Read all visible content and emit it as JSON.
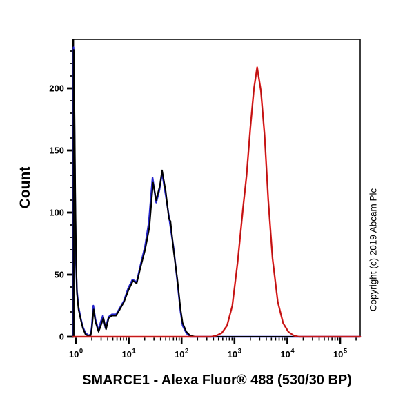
{
  "copyright": "Copyright (c) 2019 Abcam Plc",
  "chart_data": {
    "type": "line",
    "subtype": "flow-cytometry-histogram",
    "title": "",
    "xlabel": "SMARCE1 - Alexa Fluor® 488 (530/30 BP)",
    "ylabel": "Count",
    "x_scale": "log10",
    "x_tick_base": "10",
    "x_major_tick_exponents": [
      0,
      1,
      2,
      3,
      4,
      5
    ],
    "x_range_decades": [
      -0.05,
      5.38
    ],
    "y_major_ticks": [
      0,
      50,
      100,
      150,
      200
    ],
    "y_minor_step": 10,
    "ylim": [
      0,
      239
    ],
    "grid": false,
    "legend": null,
    "colors": {
      "frame": "#1a1a1a",
      "axis": "#000000",
      "blue": "#2626cc",
      "black": "#000000",
      "red": "#e81c1c",
      "red_core": "#8f1515"
    },
    "series": [
      {
        "name": "blue-curve",
        "color": "#2626cc",
        "points": [
          [
            -0.045,
            0
          ],
          [
            -0.045,
            233
          ],
          [
            -0.03,
            178
          ],
          [
            -0.015,
            112
          ],
          [
            0.0,
            62
          ],
          [
            0.02,
            37
          ],
          [
            0.05,
            24
          ],
          [
            0.09,
            15
          ],
          [
            0.13,
            8
          ],
          [
            0.18,
            3
          ],
          [
            0.24,
            1
          ],
          [
            0.28,
            2
          ],
          [
            0.3,
            8
          ],
          [
            0.33,
            25
          ],
          [
            0.37,
            14
          ],
          [
            0.43,
            5
          ],
          [
            0.47,
            12
          ],
          [
            0.51,
            17
          ],
          [
            0.56,
            7
          ],
          [
            0.62,
            16
          ],
          [
            0.68,
            18
          ],
          [
            0.76,
            18
          ],
          [
            0.83,
            23
          ],
          [
            0.91,
            29
          ],
          [
            0.99,
            39
          ],
          [
            1.07,
            46
          ],
          [
            1.15,
            44
          ],
          [
            1.23,
            59
          ],
          [
            1.31,
            73
          ],
          [
            1.38,
            92
          ],
          [
            1.45,
            128
          ],
          [
            1.52,
            108
          ],
          [
            1.58,
            118
          ],
          [
            1.63,
            132
          ],
          [
            1.7,
            114
          ],
          [
            1.76,
            97
          ],
          [
            1.85,
            71
          ],
          [
            1.92,
            44
          ],
          [
            1.98,
            20
          ],
          [
            2.02,
            9
          ],
          [
            2.09,
            3
          ],
          [
            2.16,
            0
          ],
          [
            5.38,
            0
          ]
        ]
      },
      {
        "name": "black-curve",
        "color": "#000000",
        "points": [
          [
            -0.04,
            0
          ],
          [
            -0.04,
            231
          ],
          [
            -0.025,
            175
          ],
          [
            -0.01,
            110
          ],
          [
            0.005,
            60
          ],
          [
            0.02,
            35
          ],
          [
            0.05,
            22
          ],
          [
            0.09,
            14
          ],
          [
            0.13,
            7
          ],
          [
            0.18,
            2
          ],
          [
            0.24,
            0.5
          ],
          [
            0.28,
            1
          ],
          [
            0.3,
            6
          ],
          [
            0.335,
            22
          ],
          [
            0.37,
            12
          ],
          [
            0.43,
            4
          ],
          [
            0.48,
            10
          ],
          [
            0.52,
            15
          ],
          [
            0.57,
            6
          ],
          [
            0.62,
            15
          ],
          [
            0.68,
            17
          ],
          [
            0.76,
            17
          ],
          [
            0.83,
            22
          ],
          [
            0.91,
            28
          ],
          [
            0.99,
            37
          ],
          [
            1.08,
            45
          ],
          [
            1.15,
            43
          ],
          [
            1.23,
            57
          ],
          [
            1.31,
            70
          ],
          [
            1.39,
            88
          ],
          [
            1.46,
            124
          ],
          [
            1.52,
            110
          ],
          [
            1.59,
            122
          ],
          [
            1.63,
            134
          ],
          [
            1.7,
            117
          ],
          [
            1.76,
            95
          ],
          [
            1.79,
            93
          ],
          [
            1.85,
            69
          ],
          [
            1.92,
            46
          ],
          [
            1.98,
            22
          ],
          [
            2.02,
            11
          ],
          [
            2.09,
            4
          ],
          [
            2.16,
            1
          ],
          [
            2.26,
            0
          ],
          [
            5.38,
            0
          ]
        ]
      },
      {
        "name": "red-curve",
        "color": "#e81c1c",
        "points": [
          [
            -0.05,
            0
          ],
          [
            2.56,
            0
          ],
          [
            2.66,
            1
          ],
          [
            2.76,
            3
          ],
          [
            2.86,
            9
          ],
          [
            2.96,
            25
          ],
          [
            3.06,
            60
          ],
          [
            3.16,
            103
          ],
          [
            3.23,
            130
          ],
          [
            3.3,
            168
          ],
          [
            3.37,
            200
          ],
          [
            3.43,
            217
          ],
          [
            3.5,
            198
          ],
          [
            3.57,
            162
          ],
          [
            3.64,
            110
          ],
          [
            3.72,
            63
          ],
          [
            3.82,
            28
          ],
          [
            3.92,
            11
          ],
          [
            4.02,
            4
          ],
          [
            4.12,
            1
          ],
          [
            4.22,
            0
          ],
          [
            5.38,
            0
          ]
        ]
      }
    ],
    "annotations": {
      "black_blue_peak": {
        "x_approx": 43,
        "count_approx": 134
      },
      "red_peak": {
        "x_approx": 2700,
        "count_approx": 217
      },
      "left_edge_spike_count": 231
    }
  }
}
